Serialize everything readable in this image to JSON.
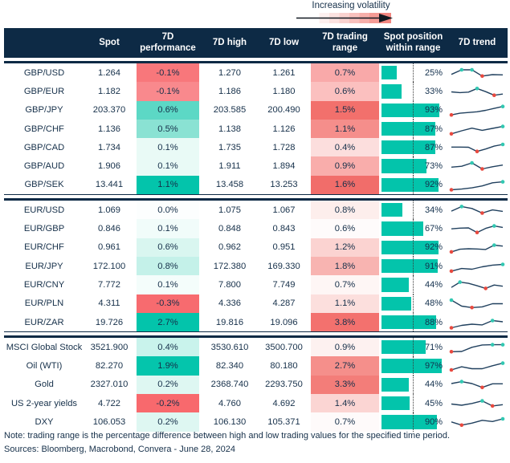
{
  "legend": {
    "label": "Increasing volatility"
  },
  "footer": {
    "note": "Note: trading range is the percentage difference between high and low trading values for the specified time period.",
    "sources": "Sources: Bloomberg, Macrobond, Convera - June 28, 2024"
  },
  "colors": {
    "header_bg": "#0d2a45",
    "text_navy": "#16304a",
    "bar_teal": "#03c4ab",
    "strong_red": "#f8696d",
    "spark_line": "#20405e",
    "spark_max_dot": "#32c8b2",
    "spark_min_dot": "#e8493f"
  },
  "chart_data": {
    "type": "table",
    "title": "",
    "columns": [
      "",
      "Spot",
      "7D performance",
      "7D high",
      "7D low",
      "7D trading range",
      "Spot position within range",
      "7D trend"
    ],
    "position_axis": {
      "min": 0,
      "max": 100,
      "midline_pct": 50
    },
    "blocks": [
      {
        "rows": [
          {
            "label": "GBP/USD",
            "spot": "1.264",
            "perf": "-0.1%",
            "perf_bg": "#f8777b",
            "high": "1.270",
            "low": "1.261",
            "range": "0.7%",
            "range_bg": "#f9a9a9",
            "pos": 25,
            "pos_label": "25%",
            "spark": [
              42,
              80,
              80,
              28,
              40,
              38
            ]
          },
          {
            "label": "GBP/EUR",
            "spot": "1.182",
            "perf": "-0.1%",
            "perf_bg": "#f9898d",
            "high": "1.186",
            "low": "1.180",
            "range": "0.6%",
            "range_bg": "#fbc0bf",
            "pos": 33,
            "pos_label": "33%",
            "spark": [
              50,
              44,
              48,
              78,
              52,
              22,
              32
            ]
          },
          {
            "label": "GBP/JPY",
            "spot": "203.370",
            "perf": "0.6%",
            "perf_bg": "#5cd8c5",
            "high": "203.585",
            "low": "200.490",
            "range": "1.5%",
            "range_bg": "#f2706c",
            "pos": 93,
            "pos_label": "93%",
            "spark": [
              12,
              26,
              32,
              38,
              50,
              66,
              82
            ]
          },
          {
            "label": "GBP/CHF",
            "spot": "1.136",
            "perf": "0.5%",
            "perf_bg": "#8ae2d3",
            "high": "1.138",
            "low": "1.126",
            "range": "1.1%",
            "range_bg": "#f58e8b",
            "pos": 87,
            "pos_label": "87%",
            "spark": [
              15,
              40,
              62,
              44,
              60,
              76
            ]
          },
          {
            "label": "GBP/CAD",
            "spot": "1.734",
            "perf": "0.1%",
            "perf_bg": "#e9faf6",
            "high": "1.735",
            "low": "1.728",
            "range": "0.4%",
            "range_bg": "#fcdedd",
            "pos": 87,
            "pos_label": "87%",
            "spark": [
              58,
              58,
              57,
              22,
              42,
              66,
              80
            ]
          },
          {
            "label": "GBP/AUD",
            "spot": "1.906",
            "perf": "0.1%",
            "perf_bg": "#e9faf6",
            "high": "1.911",
            "low": "1.894",
            "range": "0.9%",
            "range_bg": "#f9adab",
            "pos": 73,
            "pos_label": "73%",
            "spark": [
              45,
              52,
              80,
              30,
              48,
              62
            ]
          },
          {
            "label": "GBP/SEK",
            "spot": "13.441",
            "perf": "1.1%",
            "perf_bg": "#03c4ab",
            "high": "13.458",
            "low": "13.253",
            "range": "1.6%",
            "range_bg": "#f16d6a",
            "pos": 92,
            "pos_label": "92%",
            "spark": [
              10,
              16,
              26,
              42,
              68,
              76
            ]
          }
        ]
      },
      {
        "rows": [
          {
            "label": "EUR/USD",
            "spot": "1.069",
            "perf": "0.0%",
            "perf_bg": "#fcfefe",
            "high": "1.075",
            "low": "1.067",
            "range": "0.8%",
            "range_bg": "#fdeeec",
            "pos": 34,
            "pos_label": "34%",
            "spark": [
              46,
              84,
              68,
              30,
              56,
              44
            ]
          },
          {
            "label": "EUR/GBP",
            "spot": "0.846",
            "perf": "0.1%",
            "perf_bg": "#f1fcfa",
            "high": "0.848",
            "low": "0.843",
            "range": "0.6%",
            "range_bg": "#fefbfb",
            "pos": 67,
            "pos_label": "67%",
            "spark": [
              52,
              58,
              60,
              22,
              56,
              76,
              64
            ]
          },
          {
            "label": "EUR/CHF",
            "spot": "0.961",
            "perf": "0.6%",
            "perf_bg": "#d9f6f0",
            "high": "0.962",
            "low": "0.951",
            "range": "1.2%",
            "range_bg": "#fbd3d1",
            "pos": 92,
            "pos_label": "92%",
            "spark": [
              14,
              36,
              40,
              38,
              34,
              70,
              62
            ]
          },
          {
            "label": "EUR/JPY",
            "spot": "172.100",
            "perf": "0.8%",
            "perf_bg": "#c4f1e9",
            "high": "172.380",
            "low": "169.330",
            "range": "1.8%",
            "range_bg": "#f8b4b1",
            "pos": 91,
            "pos_label": "91%",
            "spark": [
              14,
              36,
              30,
              50,
              64,
              70
            ]
          },
          {
            "label": "EUR/CNY",
            "spot": "7.772",
            "perf": "0.1%",
            "perf_bg": "#f4fdfb",
            "high": "7.800",
            "low": "7.749",
            "range": "0.7%",
            "range_bg": "#fef6f5",
            "pos": 44,
            "pos_label": "44%",
            "spark": [
              32,
              76,
              66,
              46,
              24,
              52,
              42
            ]
          },
          {
            "label": "EUR/PLN",
            "spot": "4.311",
            "perf": "-0.3%",
            "perf_bg": "#f76b6f",
            "high": "4.336",
            "low": "4.287",
            "range": "1.1%",
            "range_bg": "#fcdfdd",
            "pos": 48,
            "pos_label": "48%",
            "spark": [
              80,
              30,
              18,
              24,
              50,
              50
            ]
          },
          {
            "label": "EUR/ZAR",
            "spot": "19.726",
            "perf": "2.7%",
            "perf_bg": "#03c4ab",
            "high": "19.816",
            "low": "19.096",
            "range": "3.8%",
            "range_bg": "#f3716e",
            "pos": 88,
            "pos_label": "88%",
            "spark": [
              10,
              30,
              40,
              34,
              70,
              60
            ]
          }
        ]
      },
      {
        "rows": [
          {
            "label": "MSCI Global Stock",
            "spot": "3521.900",
            "perf": "0.4%",
            "perf_bg": "#c9f3ec",
            "high": "3530.610",
            "low": "3500.700",
            "range": "0.9%",
            "range_bg": "#fdf1f0",
            "pos": 71,
            "pos_label": "71%",
            "spark": [
              18,
              20,
              55,
              74,
              76,
              76
            ]
          },
          {
            "label": "Oil (WTI)",
            "spot": "82.270",
            "perf": "1.9%",
            "perf_bg": "#04c5ac",
            "high": "82.340",
            "low": "80.180",
            "range": "2.7%",
            "range_bg": "#f58f8b",
            "pos": 97,
            "pos_label": "97%",
            "spark": [
              20,
              46,
              30,
              30,
              55,
              76
            ]
          },
          {
            "label": "Gold",
            "spot": "2327.010",
            "perf": "0.2%",
            "perf_bg": "#def7f2",
            "high": "2368.740",
            "low": "2293.750",
            "range": "3.3%",
            "range_bg": "#f37d79",
            "pos": 44,
            "pos_label": "44%",
            "spark": [
              60,
              76,
              60,
              28,
              58,
              58
            ]
          },
          {
            "label": "US 2-year yields",
            "spot": "4.722",
            "perf": "-0.2%",
            "perf_bg": "#f8696d",
            "high": "4.760",
            "low": "4.692",
            "range": "1.4%",
            "range_bg": "#fbd5d3",
            "pos": 45,
            "pos_label": "45%",
            "spark": [
              50,
              40,
              55,
              76,
              34,
              45
            ]
          },
          {
            "label": "DXY",
            "spot": "106.053",
            "perf": "0.2%",
            "perf_bg": "#def7f2",
            "high": "106.130",
            "low": "105.371",
            "range": "0.7%",
            "range_bg": "#fefafa",
            "pos": 90,
            "pos_label": "90%",
            "spark": [
              55,
              28,
              45,
              68,
              58,
              80
            ]
          }
        ]
      }
    ]
  }
}
